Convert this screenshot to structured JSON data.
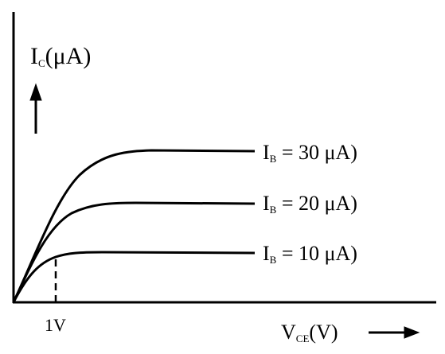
{
  "y_axis_label": {
    "main": "I",
    "sub": "C",
    "rest": "(μA)"
  },
  "x_axis_label": {
    "main": "V",
    "sub": "CE",
    "rest": "(V)"
  },
  "knee_label": "1V",
  "curves": [
    {
      "main": "I",
      "sub": "B",
      "rest": " = 30 μA)"
    },
    {
      "main": "I",
      "sub": "B",
      "rest": " = 20 μA)"
    },
    {
      "main": "I",
      "sub": "B",
      "rest": " = 10 μA)"
    }
  ]
}
